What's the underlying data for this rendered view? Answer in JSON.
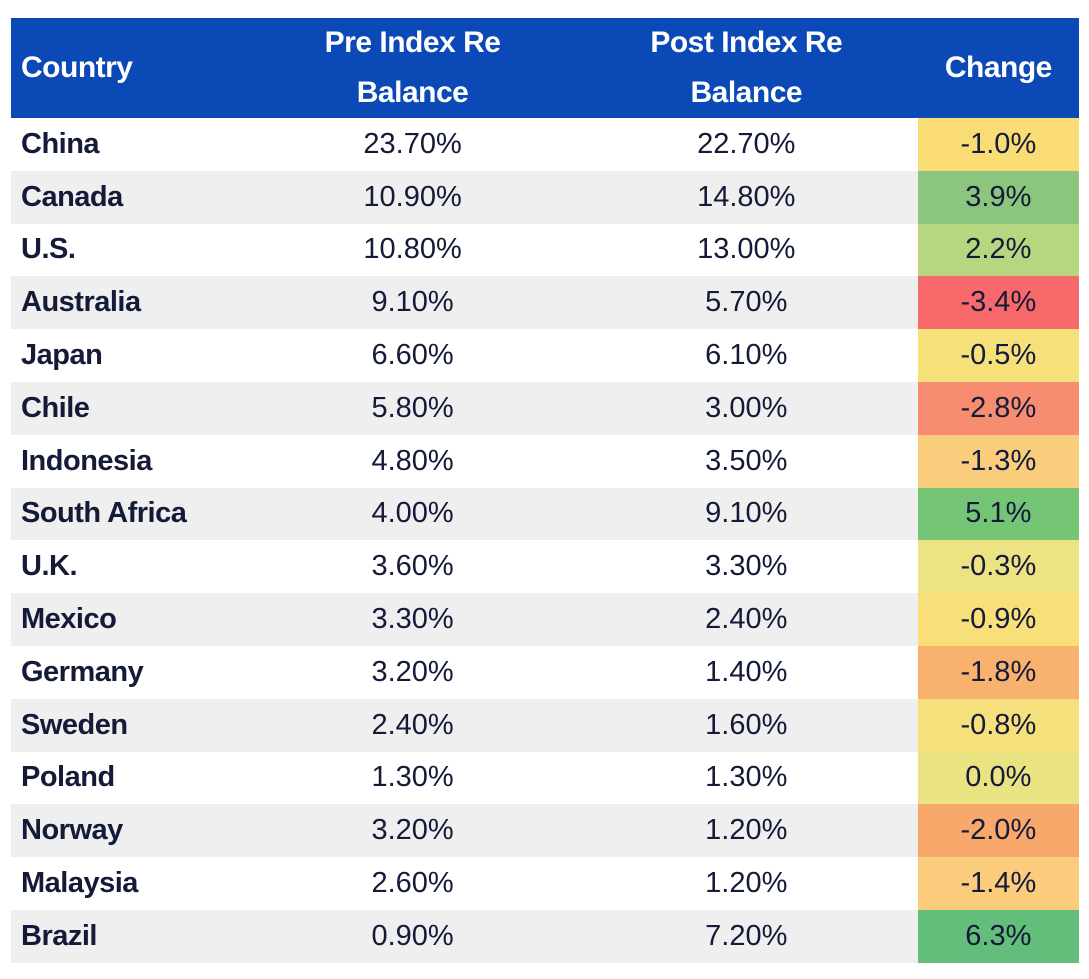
{
  "colors": {
    "header_bg": "#0B49B6",
    "header_text": "#FFFFFF",
    "body_text": "#141A38",
    "stripe": "#EFEFEF",
    "row_white": "#FFFFFF",
    "change_min_red": "#F8696B",
    "change_mid_yellow": "#FFEB84",
    "change_max_green": "#63BE7B"
  },
  "table": {
    "columns": [
      "Country",
      "Pre Index Re\nBalance",
      "Post Index Re\nBalance",
      "Change"
    ],
    "rows": [
      {
        "country": "China",
        "pre": "23.70%",
        "post": "22.70%",
        "change": "-1.0%",
        "change_color": "#FADC74"
      },
      {
        "country": "Canada",
        "pre": "10.90%",
        "post": "14.80%",
        "change": "3.9%",
        "change_color": "#8BC57E"
      },
      {
        "country": "U.S.",
        "pre": "10.80%",
        "post": "13.00%",
        "change": "2.2%",
        "change_color": "#B6D680"
      },
      {
        "country": "Australia",
        "pre": "9.10%",
        "post": "5.70%",
        "change": "-3.4%",
        "change_color": "#F8696B"
      },
      {
        "country": "Japan",
        "pre": "6.60%",
        "post": "6.10%",
        "change": "-0.5%",
        "change_color": "#F6E07A"
      },
      {
        "country": "Chile",
        "pre": "5.80%",
        "post": "3.00%",
        "change": "-2.8%",
        "change_color": "#F68C70"
      },
      {
        "country": "Indonesia",
        "pre": "4.80%",
        "post": "3.50%",
        "change": "-1.3%",
        "change_color": "#FACD7D"
      },
      {
        "country": "South Africa",
        "pre": "4.00%",
        "post": "9.10%",
        "change": "5.1%",
        "change_color": "#75C577"
      },
      {
        "country": "U.K.",
        "pre": "3.60%",
        "post": "3.30%",
        "change": "-0.3%",
        "change_color": "#EEE382"
      },
      {
        "country": "Mexico",
        "pre": "3.30%",
        "post": "2.40%",
        "change": "-0.9%",
        "change_color": "#F9DF79"
      },
      {
        "country": "Germany",
        "pre": "3.20%",
        "post": "1.40%",
        "change": "-1.8%",
        "change_color": "#F9B16E"
      },
      {
        "country": "Sweden",
        "pre": "2.40%",
        "post": "1.60%",
        "change": "-0.8%",
        "change_color": "#F6E07B"
      },
      {
        "country": "Poland",
        "pre": "1.30%",
        "post": "1.30%",
        "change": "0.0%",
        "change_color": "#EAE381"
      },
      {
        "country": "Norway",
        "pre": "3.20%",
        "post": "1.20%",
        "change": "-2.0%",
        "change_color": "#F9A86B"
      },
      {
        "country": "Malaysia",
        "pre": "2.60%",
        "post": "1.20%",
        "change": "-1.4%",
        "change_color": "#FBCC7C"
      },
      {
        "country": "Brazil",
        "pre": "0.90%",
        "post": "7.20%",
        "change": "6.3%",
        "change_color": "#63BE7B"
      }
    ]
  },
  "chart_data": {
    "type": "table",
    "title": "",
    "columns": [
      "Country",
      "Pre Index Re Balance",
      "Post Index Re Balance",
      "Change"
    ],
    "units": "percent",
    "rows": [
      [
        "China",
        23.7,
        22.7,
        -1.0
      ],
      [
        "Canada",
        10.9,
        14.8,
        3.9
      ],
      [
        "U.S.",
        10.8,
        13.0,
        2.2
      ],
      [
        "Australia",
        9.1,
        5.7,
        -3.4
      ],
      [
        "Japan",
        6.6,
        6.1,
        -0.5
      ],
      [
        "Chile",
        5.8,
        3.0,
        -2.8
      ],
      [
        "Indonesia",
        4.8,
        3.5,
        -1.3
      ],
      [
        "South Africa",
        4.0,
        9.1,
        5.1
      ],
      [
        "U.K.",
        3.6,
        3.3,
        -0.3
      ],
      [
        "Mexico",
        3.3,
        2.4,
        -0.9
      ],
      [
        "Germany",
        3.2,
        1.4,
        -1.8
      ],
      [
        "Sweden",
        2.4,
        1.6,
        -0.8
      ],
      [
        "Poland",
        1.3,
        1.3,
        0.0
      ],
      [
        "Norway",
        3.2,
        1.2,
        -2.0
      ],
      [
        "Malaysia",
        2.6,
        1.2,
        -1.4
      ],
      [
        "Brazil",
        0.9,
        7.2,
        6.3
      ]
    ],
    "layout_hints": {
      "change_column_heatmap": "red-yellow-green diverging scale from -3.4 (red) to 6.3 (green)",
      "alternating_row_stripes": true,
      "header_style": "blue background, white bold text"
    }
  }
}
